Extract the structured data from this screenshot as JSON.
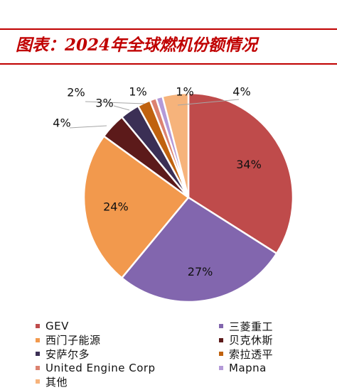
{
  "title": "图表：2024年全球燃机份额情况",
  "colors": {
    "title": "#c00000",
    "rule": "#c00000",
    "text": "#111111"
  },
  "chart_data": {
    "type": "pie",
    "title": "",
    "legend_position": "bottom",
    "slices": [
      {
        "name": "GEV",
        "value": 34,
        "label": "34%",
        "color": "#bf4b4b"
      },
      {
        "name": "三菱重工",
        "value": 27,
        "label": "27%",
        "color": "#8266ae"
      },
      {
        "name": "西门子能源",
        "value": 24,
        "label": "24%",
        "color": "#f2994d"
      },
      {
        "name": "贝克休斯",
        "value": 4,
        "label": "4%",
        "color": "#5c1a1a"
      },
      {
        "name": "安萨尔多",
        "value": 3,
        "label": "3%",
        "color": "#3b2f55"
      },
      {
        "name": "索拉透平",
        "value": 2,
        "label": "2%",
        "color": "#c0620f"
      },
      {
        "name": "United Engine Corp",
        "value": 1,
        "label": "1%",
        "color": "#dc8270"
      },
      {
        "name": "Mapna",
        "value": 1,
        "label": "1%",
        "color": "#b49ad8"
      },
      {
        "name": "其他",
        "value": 4,
        "label": "4%",
        "color": "#f6b37b"
      }
    ]
  }
}
